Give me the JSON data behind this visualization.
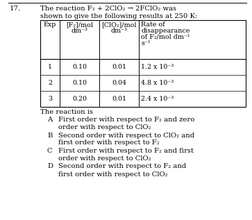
{
  "question_number": "17.",
  "title_line1": "The reaction F₂ + 2ClO₂ → 2FClO₂ was",
  "title_line2": "shown to give the following results at 250 K:",
  "col_headers": [
    "Exp",
    "[F₂]/mol\ndm⁻³",
    "[ClO₂]/mol\ndm⁻³",
    "Rate of\ndisappearance\nof F₂/mol dm⁻¹\ns⁻¹"
  ],
  "table_rows": [
    [
      "1",
      "0.10",
      "0.01",
      "1.2 x 10⁻³"
    ],
    [
      "2",
      "0.10",
      "0.04",
      "4.8 x 10⁻³"
    ],
    [
      "3",
      "0.20",
      "0.01",
      "2.4 x 10⁻³"
    ]
  ],
  "reaction_label": "The reaction is",
  "options": [
    [
      "A",
      "First order with respect to F₂ and zero",
      "order with respect to ClO₂"
    ],
    [
      "B",
      "Second order with respect to ClO₂ and",
      "first order with respect to F₂"
    ],
    [
      "C",
      "First order with respect to F₂ and first",
      "order with respect to ClO₂"
    ],
    [
      "D",
      "Second order with respect to F₂ and",
      "first order with respect to ClO₂"
    ]
  ],
  "bg_color": "#ffffff",
  "text_color": "#000000",
  "font_size": 7.2,
  "small_font_size": 6.8
}
